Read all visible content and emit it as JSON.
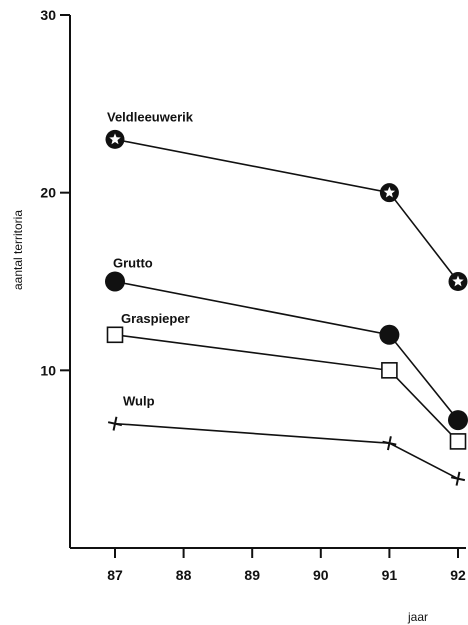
{
  "chart_data": {
    "type": "line",
    "title": "",
    "xlabel": "jaar",
    "ylabel": "aantal territoria",
    "x_ticks": [
      "87",
      "88",
      "89",
      "90",
      "91",
      "92"
    ],
    "y_ticks": [
      "10",
      "20",
      "30"
    ],
    "xlim": [
      86.5,
      92.1
    ],
    "ylim": [
      0,
      30
    ],
    "grid": false,
    "legend": "labels-on-lines",
    "series": [
      {
        "name": "Veldleeuwerik",
        "marker": "star-circle",
        "color": "#111111",
        "x": [
          87,
          91,
          92
        ],
        "y": [
          23,
          20,
          15
        ]
      },
      {
        "name": "Grutto",
        "marker": "filled-circle",
        "color": "#111111",
        "x": [
          87,
          91,
          92
        ],
        "y": [
          15,
          12,
          7.2
        ]
      },
      {
        "name": "Graspieper",
        "marker": "open-square",
        "color": "#111111",
        "x": [
          87,
          91,
          92
        ],
        "y": [
          12,
          10,
          6
        ]
      },
      {
        "name": "Wulp",
        "marker": "plus",
        "color": "#111111",
        "x": [
          87,
          91,
          92
        ],
        "y": [
          7,
          5.9,
          3.9
        ]
      }
    ]
  }
}
